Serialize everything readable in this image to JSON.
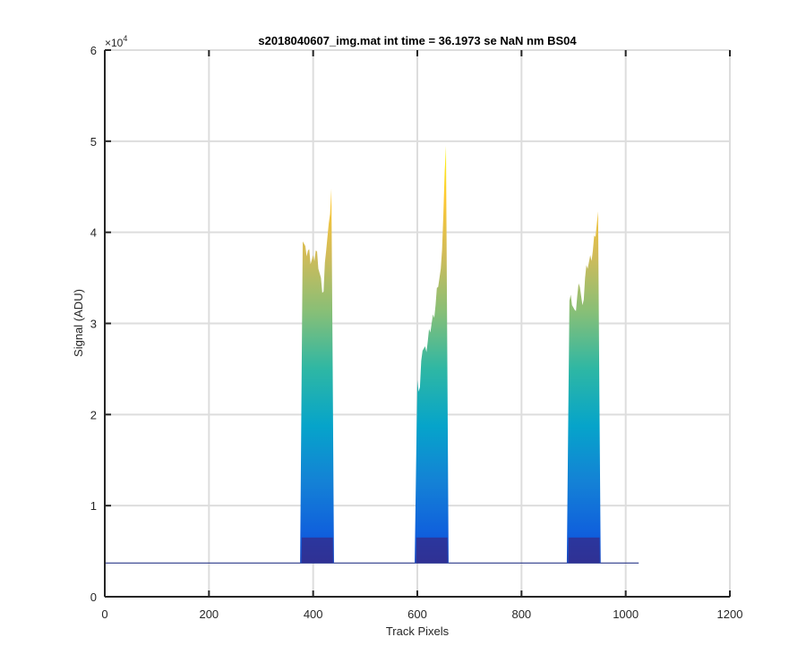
{
  "chart_data": {
    "type": "area",
    "title": "s2018040607_img.mat int time = 36.1973 se  NaN nm BS04",
    "xlabel": "Track Pixels",
    "ylabel": "Signal (ADU)",
    "xlim": [
      0,
      1200
    ],
    "ylim": [
      0,
      60000
    ],
    "x_ticks": [
      0,
      200,
      400,
      600,
      800,
      1000,
      1200
    ],
    "x_tick_labels": [
      "0",
      "200",
      "400",
      "600",
      "800",
      "1000",
      "1200"
    ],
    "y_ticks": [
      0,
      10000,
      20000,
      30000,
      40000,
      50000,
      60000
    ],
    "y_tick_labels": [
      "0",
      "1",
      "2",
      "3",
      "4",
      "5",
      "6"
    ],
    "y_exponent_base": "×10",
    "y_exponent": "4",
    "grid": true,
    "colormap": "parula",
    "baseline": {
      "x_start": 0,
      "x_end": 1025,
      "value": 3700
    },
    "series": [
      {
        "x": [
          375,
          380,
          385,
          390,
          395,
          400,
          405,
          410,
          415,
          420,
          425,
          430,
          435,
          440
        ],
        "peak": [
          4000,
          39000,
          38500,
          38000,
          36500,
          37500,
          38000,
          36000,
          35000,
          33500,
          38000,
          41000,
          44800,
          4000
        ]
      },
      {
        "x": [
          595,
          600,
          605,
          610,
          615,
          620,
          625,
          630,
          635,
          640,
          645,
          650,
          655,
          660
        ],
        "peak": [
          4000,
          23800,
          23000,
          27000,
          27500,
          28000,
          29000,
          31000,
          32000,
          34000,
          36000,
          42000,
          49500,
          4000
        ]
      },
      {
        "x": [
          887,
          892,
          897,
          902,
          907,
          912,
          917,
          922,
          927,
          932,
          937,
          942,
          947,
          952
        ],
        "peak": [
          4000,
          32500,
          32000,
          31500,
          33000,
          34000,
          32000,
          35000,
          36000,
          37500,
          38000,
          39500,
          42300,
          4000
        ]
      }
    ],
    "colors": {
      "grid": "#dddddd",
      "axis": "#262626",
      "baseline_line": "#2c3a8a",
      "colormap_stops": [
        "#352a87",
        "#0f5cdd",
        "#1481d6",
        "#06a4ca",
        "#2eb7a4",
        "#87bf77",
        "#d1bb59",
        "#fec832",
        "#f9fb0e"
      ]
    }
  }
}
